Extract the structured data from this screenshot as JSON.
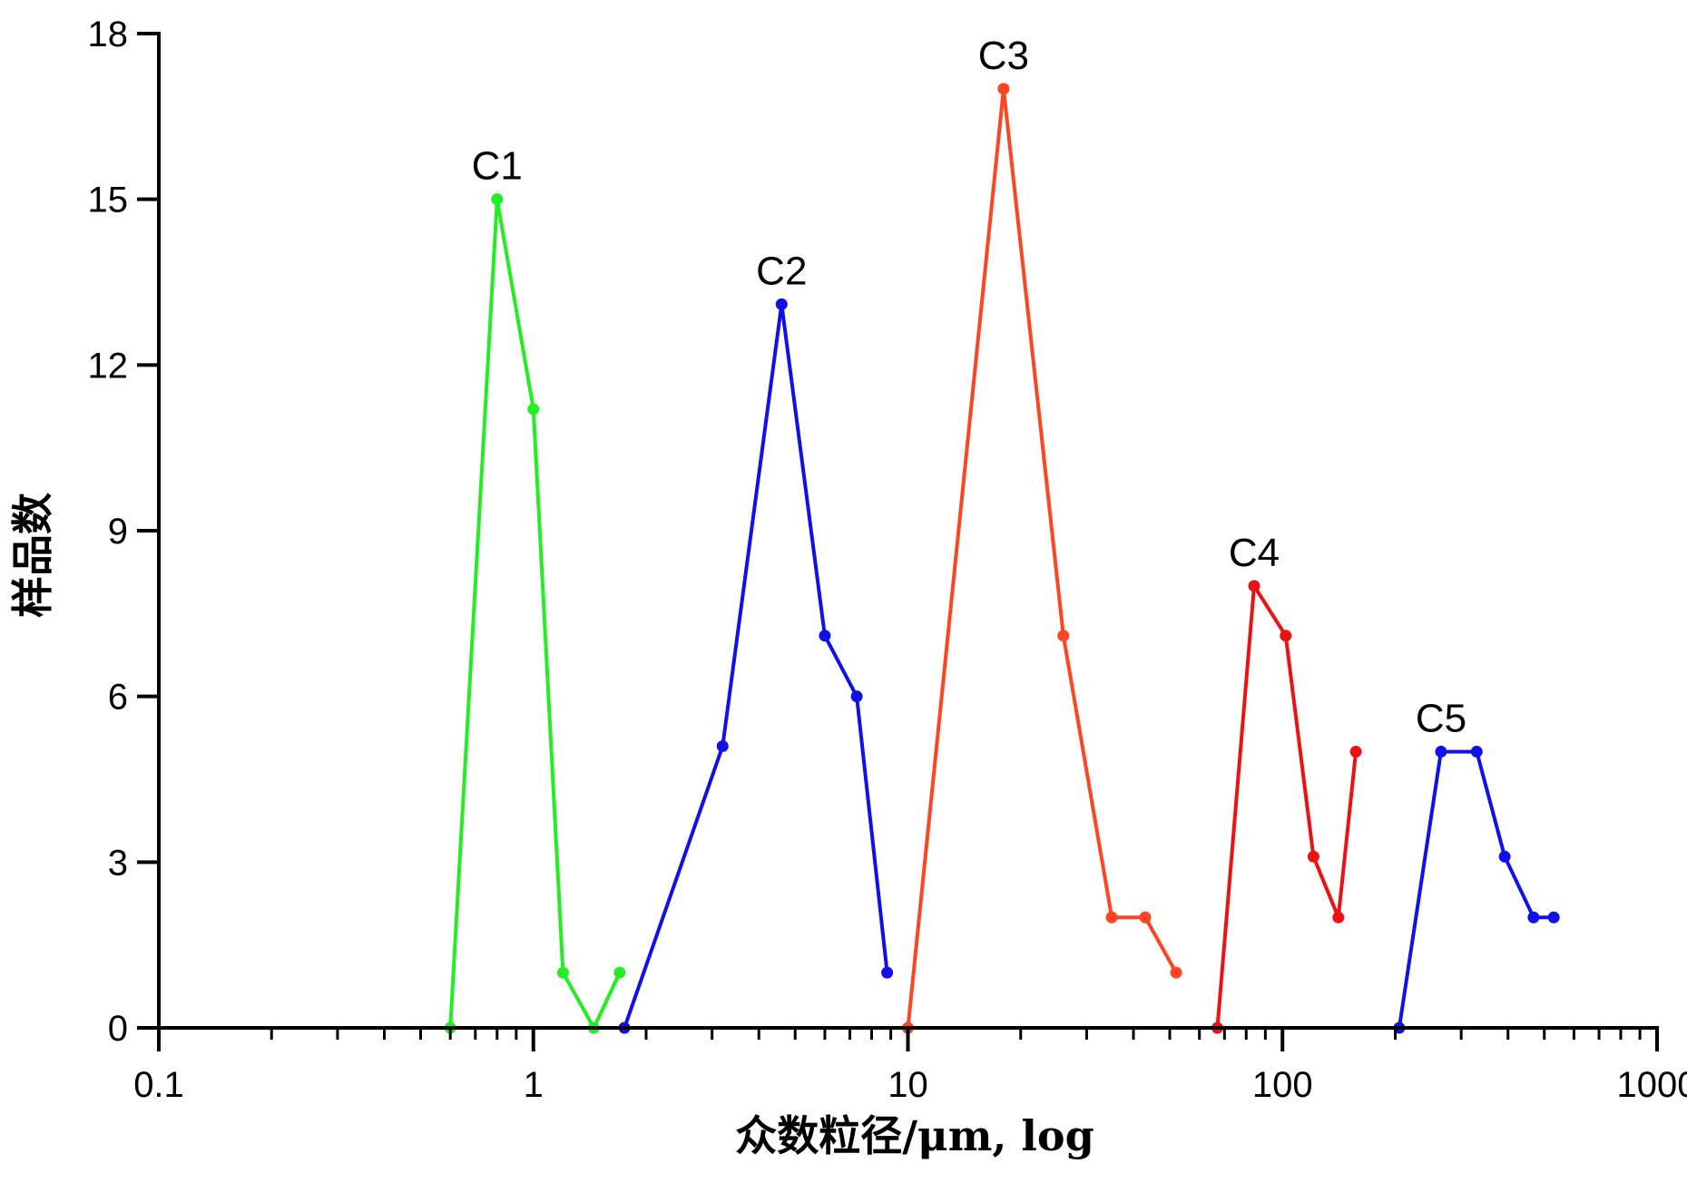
{
  "chart_data": {
    "type": "line",
    "title": "",
    "xlabel": "众数粒径/μm, log",
    "ylabel": "样品数",
    "x_scale": "log",
    "xlim": [
      0.1,
      1000
    ],
    "ylim": [
      0,
      18
    ],
    "x_ticks": [
      "0.1",
      "1",
      "10",
      "100",
      "1000"
    ],
    "y_ticks": [
      "0",
      "3",
      "6",
      "9",
      "12",
      "15",
      "18"
    ],
    "grid": false,
    "legend": "none",
    "series": [
      {
        "name": "C1",
        "color": "#22ee22",
        "points": [
          [
            0.6,
            0
          ],
          [
            0.8,
            15
          ],
          [
            1.0,
            11.2
          ],
          [
            1.2,
            1
          ],
          [
            1.45,
            0
          ],
          [
            1.7,
            1
          ]
        ]
      },
      {
        "name": "C2",
        "color": "#1010ee",
        "points": [
          [
            1.75,
            0
          ],
          [
            3.2,
            5.1
          ],
          [
            4.6,
            13.1
          ],
          [
            6.0,
            7.1
          ],
          [
            7.3,
            6
          ],
          [
            8.8,
            1
          ]
        ]
      },
      {
        "name": "C3",
        "color": "#ff4422",
        "points": [
          [
            10,
            0
          ],
          [
            18,
            17
          ],
          [
            26,
            7.1
          ],
          [
            35,
            2
          ],
          [
            43,
            2
          ],
          [
            52,
            1
          ]
        ]
      },
      {
        "name": "C4",
        "color": "#ee1111",
        "points": [
          [
            67,
            0
          ],
          [
            84,
            8
          ],
          [
            102,
            7.1
          ],
          [
            121,
            3.1
          ],
          [
            141,
            2
          ],
          [
            157,
            5
          ]
        ]
      },
      {
        "name": "C5",
        "color": "#1010ee",
        "points": [
          [
            205,
            0
          ],
          [
            265,
            5
          ],
          [
            330,
            5
          ],
          [
            392,
            3.1
          ],
          [
            468,
            2
          ],
          [
            530,
            2
          ]
        ]
      }
    ]
  }
}
